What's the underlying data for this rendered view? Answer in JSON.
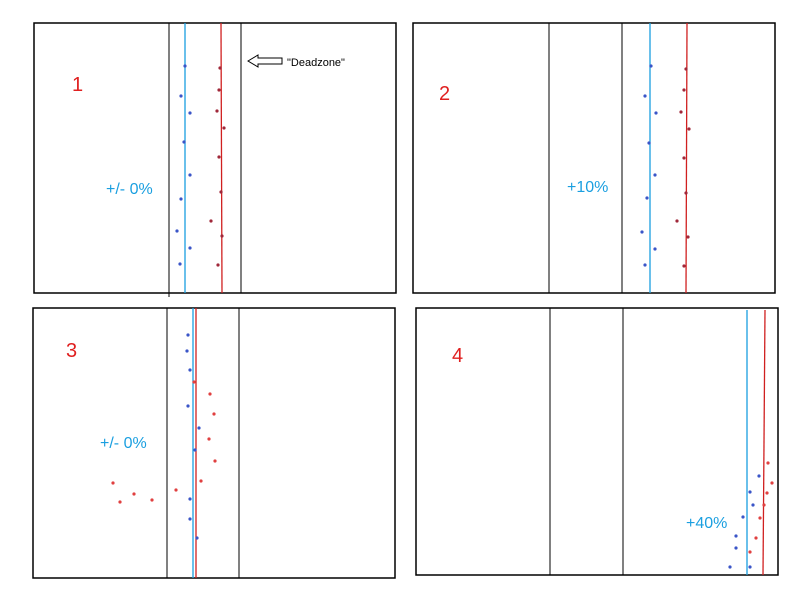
{
  "panels": [
    {
      "label": "1",
      "annotation": "+/- 0%"
    },
    {
      "label": "2",
      "annotation": "+10%"
    },
    {
      "label": "3",
      "annotation": "+/- 0%"
    },
    {
      "label": "4",
      "annotation": "+40%"
    }
  ],
  "deadzone_label": "\"Deadzone\""
}
